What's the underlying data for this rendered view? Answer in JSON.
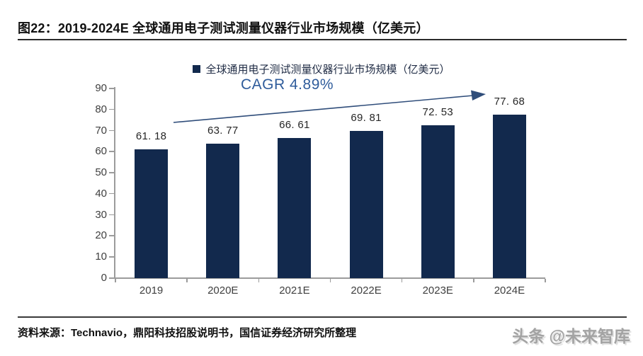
{
  "header": {
    "title": "图22：2019-2024E 全球通用电子测试测量仪器行业市场规模（亿美元）"
  },
  "footer": {
    "source": "资料来源：Technavio，鼎阳科技招股说明书，国信证券经济研究所整理",
    "watermark": "头条 @未来智库"
  },
  "chart_data": {
    "type": "bar",
    "legend": "全球通用电子测试测量仪器行业市场规模（亿美元）",
    "legend_position": "top-center",
    "annotation": "CAGR 4.89%",
    "categories": [
      "2019",
      "2020E",
      "2021E",
      "2022E",
      "2023E",
      "2024E"
    ],
    "values": [
      61.18,
      63.77,
      66.61,
      69.81,
      72.53,
      77.68
    ],
    "value_labels": [
      "61. 18",
      "63. 77",
      "66. 61",
      "69. 81",
      "72. 53",
      "77. 68"
    ],
    "xlabel": "",
    "ylabel": "",
    "ylim": [
      0,
      90
    ],
    "yticks": [
      0,
      10,
      20,
      30,
      40,
      50,
      60,
      70,
      80,
      90
    ],
    "grid": false,
    "colors": {
      "bar": "#12294d",
      "annotation": "#2f5c9b",
      "arrow": "#2f4d7a",
      "axis": "#9b9b9b",
      "tick_label": "#3f3f3f",
      "value_label": "#262626",
      "legend_text": "#1f2b44"
    }
  }
}
